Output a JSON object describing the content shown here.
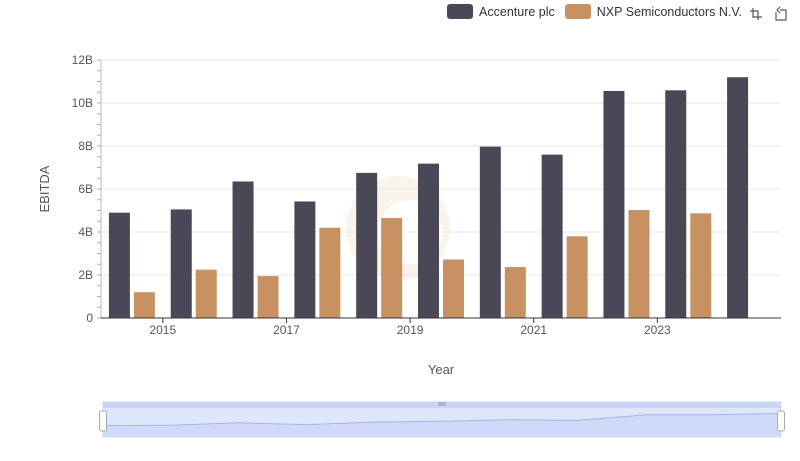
{
  "chart_data": {
    "type": "bar",
    "title": "",
    "xlabel": "Year",
    "ylabel": "EBITDA",
    "ylim": [
      0,
      12000000000
    ],
    "y_ticks": [
      "0",
      "2B",
      "4B",
      "6B",
      "8B",
      "10B",
      "12B"
    ],
    "x_tick_labels": [
      "2015",
      "2017",
      "2019",
      "2021",
      "2023"
    ],
    "categories": [
      "2014",
      "2015",
      "2016",
      "2017",
      "2018",
      "2019",
      "2020",
      "2021",
      "2022",
      "2023",
      "2024"
    ],
    "series": [
      {
        "name": "Accenture plc",
        "color": "#4a4856",
        "values": [
          4900000000,
          5050000000,
          6350000000,
          5420000000,
          6750000000,
          7180000000,
          7970000000,
          7600000000,
          10560000000,
          10590000000,
          11200000000
        ]
      },
      {
        "name": "NXP Semiconductors N.V.",
        "color": "#c79162",
        "values": [
          1200000000,
          2250000000,
          1950000000,
          4200000000,
          4650000000,
          2720000000,
          2370000000,
          3800000000,
          5020000000,
          4870000000,
          null
        ]
      }
    ],
    "grid": true,
    "legend_position": "top-right",
    "has_range_slider": true
  },
  "toolbar": {
    "icons": [
      "zoom-icon",
      "restore-icon"
    ]
  }
}
